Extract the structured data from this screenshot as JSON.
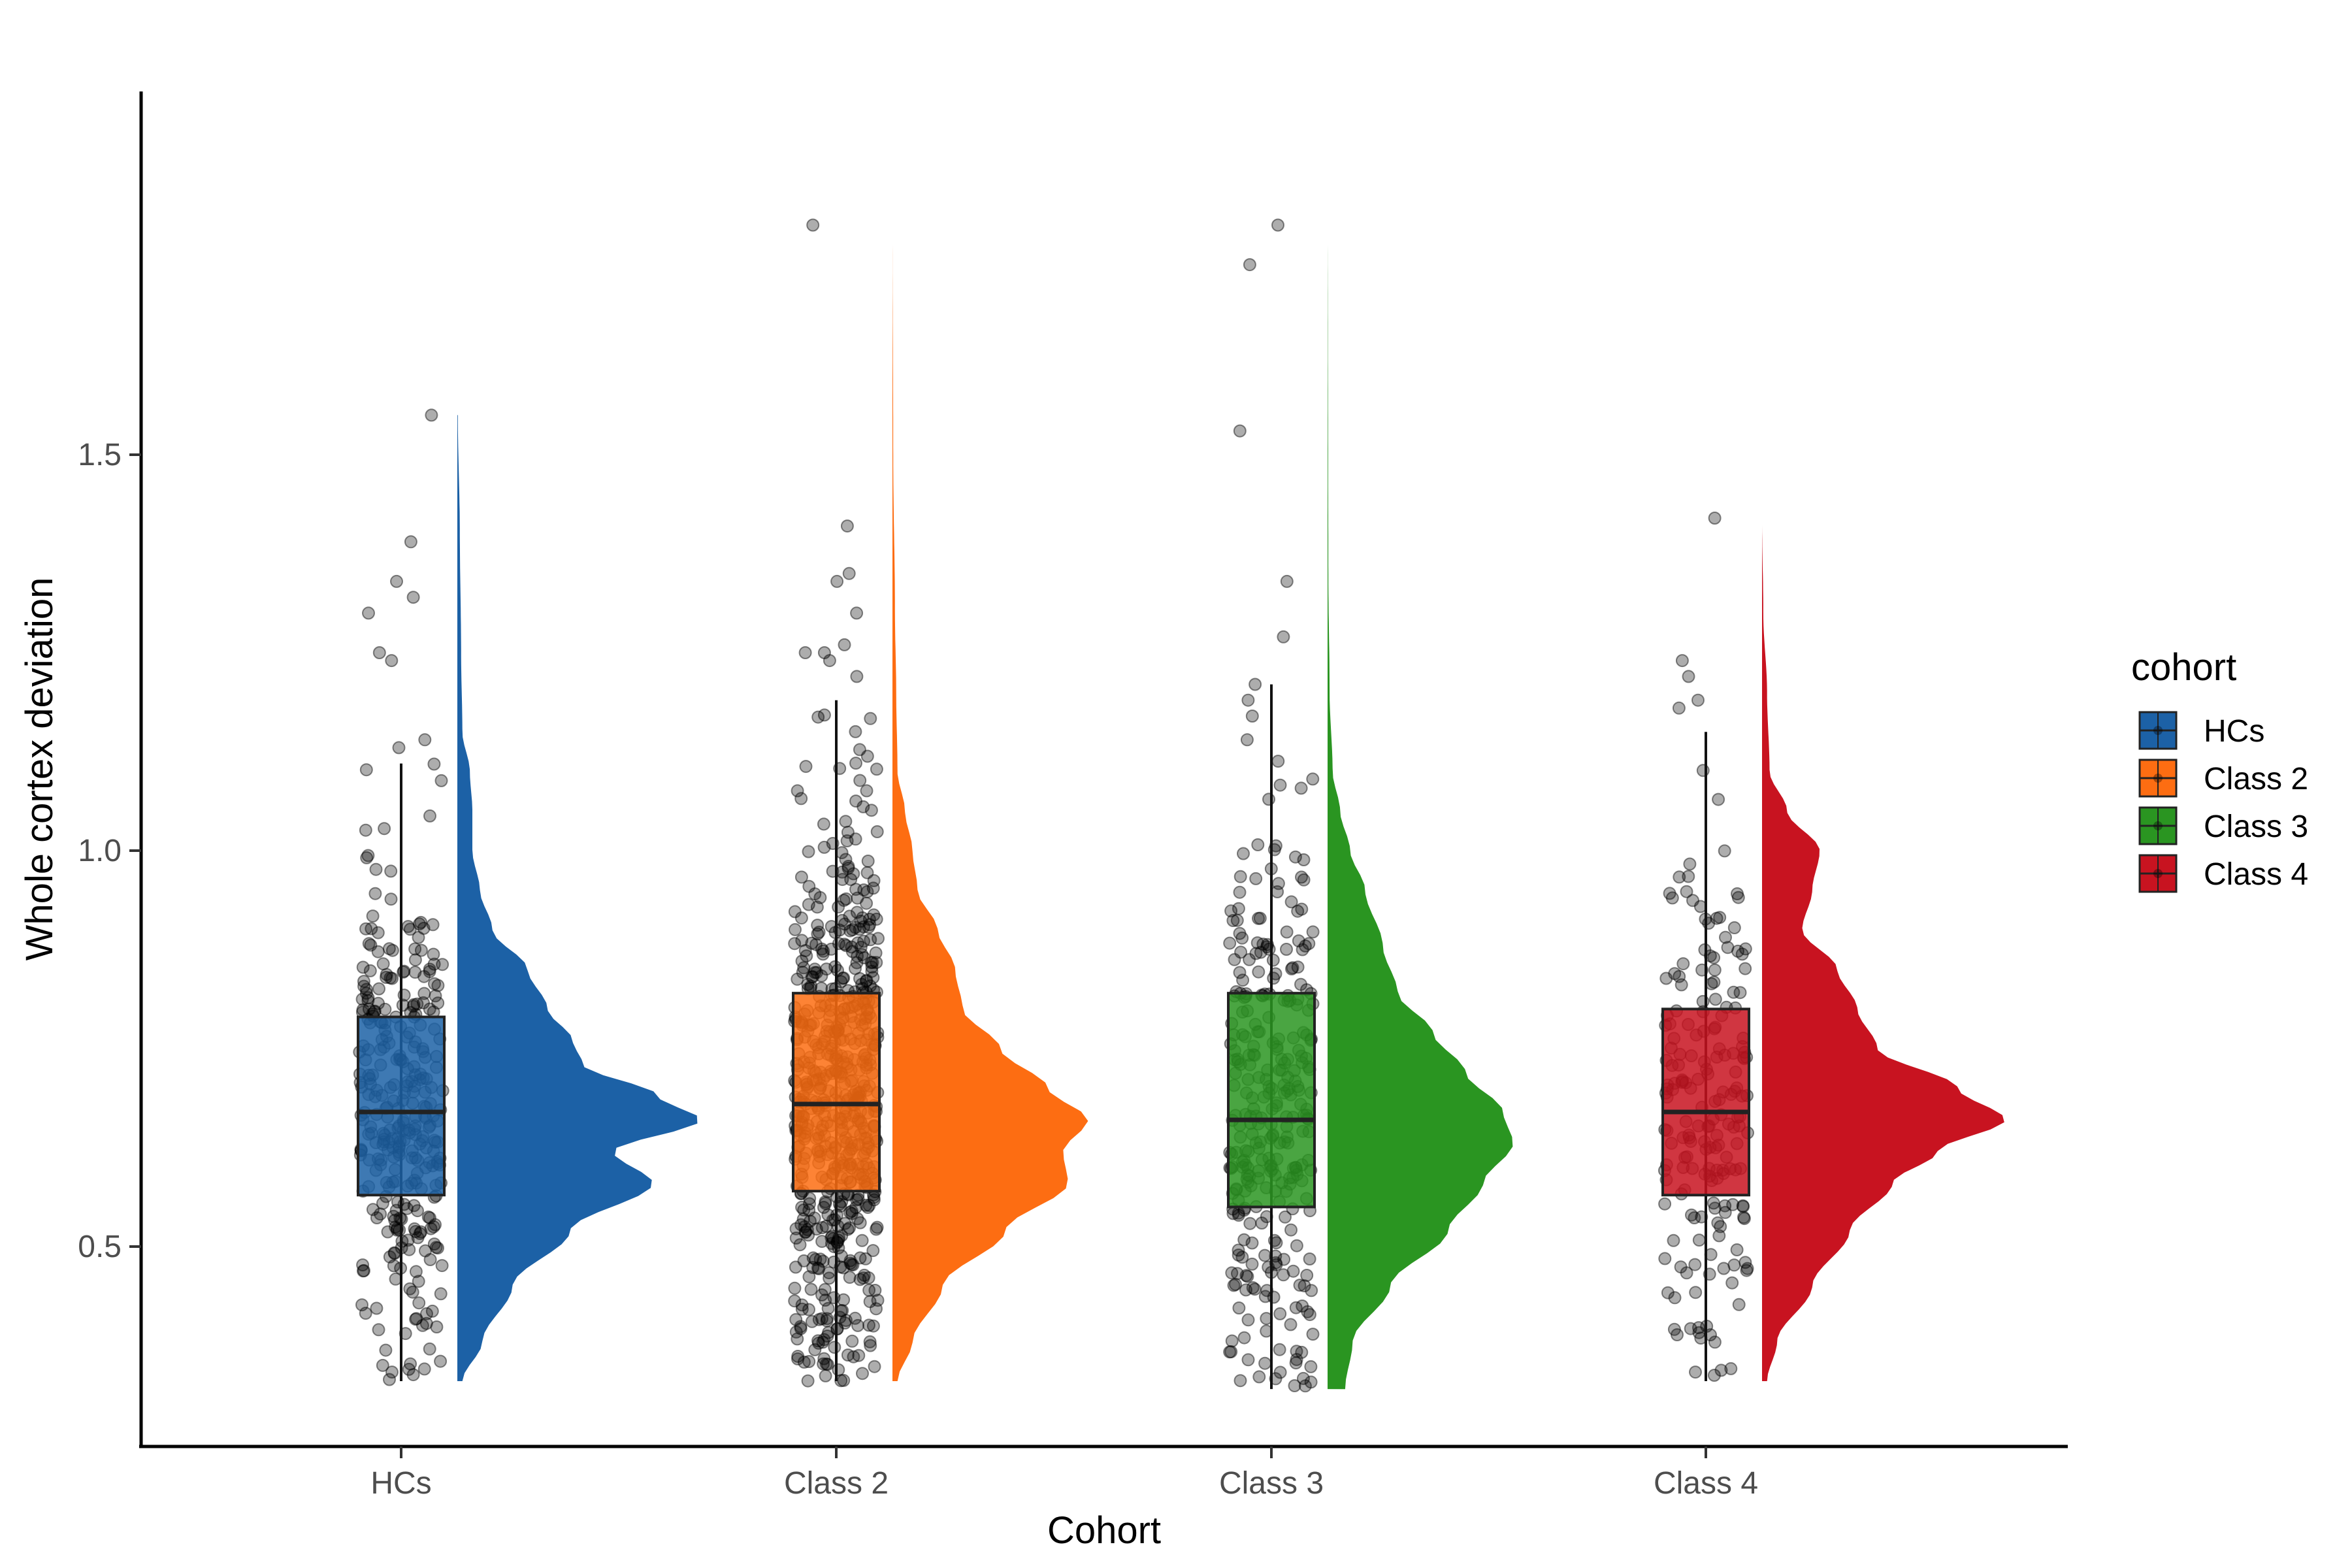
{
  "chart_data": {
    "type": "raincloud",
    "title": "",
    "xlabel": "Cohort",
    "ylabel": "Whole cortex deviation",
    "categories": [
      "HCs",
      "Class 2",
      "Class 3",
      "Class 4"
    ],
    "ylim": [
      0.25,
      1.96
    ],
    "yticks": [
      0.5,
      1.0,
      1.5
    ],
    "ytick_labels": [
      "0.5",
      "1.0",
      "1.5"
    ],
    "grid": false,
    "legend": {
      "title": "cohort",
      "position": "right",
      "entries": [
        "HCs",
        "Class 2",
        "Class 3",
        "Class 4"
      ]
    },
    "series": [
      {
        "name": "HCs",
        "color": "#1c61a6",
        "box": {
          "min": 0.33,
          "q1": 0.565,
          "median": 0.67,
          "q3": 0.79,
          "max": 1.11
        },
        "density_range": [
          0.33,
          1.55
        ],
        "n_points": 320,
        "outliers": [
          1.55,
          1.39,
          1.34,
          1.32,
          1.3,
          1.25,
          1.24,
          1.14,
          1.13
        ]
      },
      {
        "name": "Class 2",
        "color": "#fd6d12",
        "box": {
          "min": 0.33,
          "q1": 0.57,
          "median": 0.68,
          "q3": 0.82,
          "max": 1.19
        },
        "density_range": [
          0.33,
          1.79
        ],
        "n_points": 640,
        "outliers": [
          1.79,
          1.41,
          1.35,
          1.34,
          1.3,
          1.26,
          1.25,
          1.25,
          1.24,
          1.22
        ]
      },
      {
        "name": "Class 3",
        "color": "#2a9521",
        "box": {
          "min": 0.32,
          "q1": 0.55,
          "median": 0.66,
          "q3": 0.82,
          "max": 1.21
        },
        "density_range": [
          0.32,
          1.79
        ],
        "n_points": 310,
        "outliers": [
          1.79,
          1.74,
          1.53,
          1.34,
          1.27,
          1.21,
          1.19,
          1.17,
          1.14
        ]
      },
      {
        "name": "Class 4",
        "color": "#c81320",
        "box": {
          "min": 0.33,
          "q1": 0.565,
          "median": 0.67,
          "q3": 0.8,
          "max": 1.15
        },
        "density_range": [
          0.33,
          1.42
        ],
        "n_points": 190,
        "outliers": [
          1.42,
          1.24,
          1.22,
          1.19,
          1.18
        ]
      }
    ]
  }
}
